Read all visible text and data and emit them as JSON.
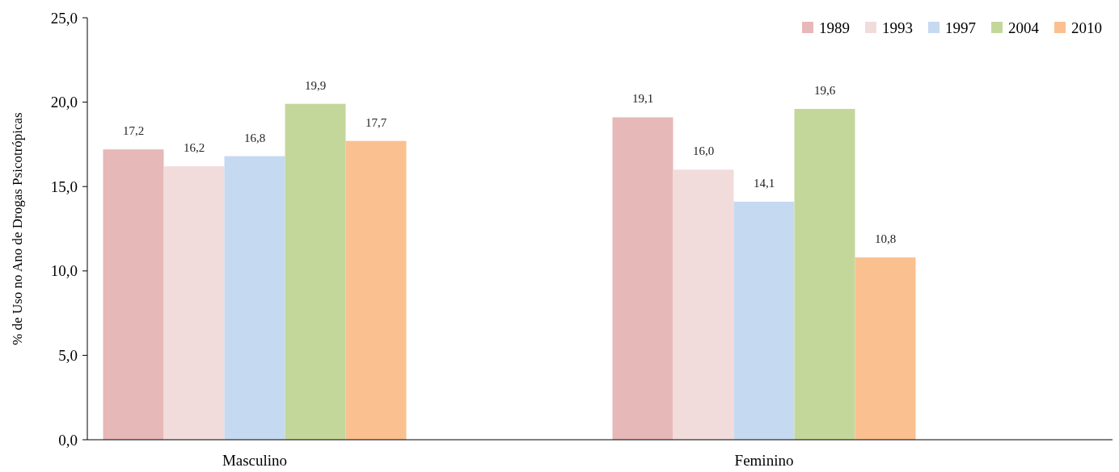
{
  "chart_data": {
    "type": "bar",
    "ylabel": "% de Uso no Ano de Drogas Psicotrópicas",
    "categories": [
      "Masculino",
      "Feminino"
    ],
    "series": [
      {
        "name": "1989",
        "color": "#e6b8b7",
        "values": [
          17.2,
          19.1
        ],
        "value_labels": [
          "17,2",
          "19,1"
        ]
      },
      {
        "name": "1993",
        "color": "#f2dcdb",
        "values": [
          16.2,
          16.0
        ],
        "value_labels": [
          "16,2",
          "16,0"
        ]
      },
      {
        "name": "1997",
        "color": "#c5d9f1",
        "values": [
          16.8,
          14.1
        ],
        "value_labels": [
          "16,8",
          "14,1"
        ]
      },
      {
        "name": "2004",
        "color": "#c4d79b",
        "values": [
          19.9,
          19.6
        ],
        "value_labels": [
          "19,9",
          "19,6"
        ]
      },
      {
        "name": "2010",
        "color": "#fac090",
        "values": [
          17.7,
          10.8
        ],
        "value_labels": [
          "17,7",
          "10,8"
        ]
      }
    ],
    "ylim": [
      0,
      25
    ],
    "yticks": [
      {
        "value": 0,
        "label": "0,0"
      },
      {
        "value": 5,
        "label": "5,0"
      },
      {
        "value": 10,
        "label": "10,0"
      },
      {
        "value": 15,
        "label": "15,0"
      },
      {
        "value": 20,
        "label": "20,0"
      },
      {
        "value": 25,
        "label": "25,0"
      }
    ],
    "legend": "top right",
    "grid": false
  }
}
